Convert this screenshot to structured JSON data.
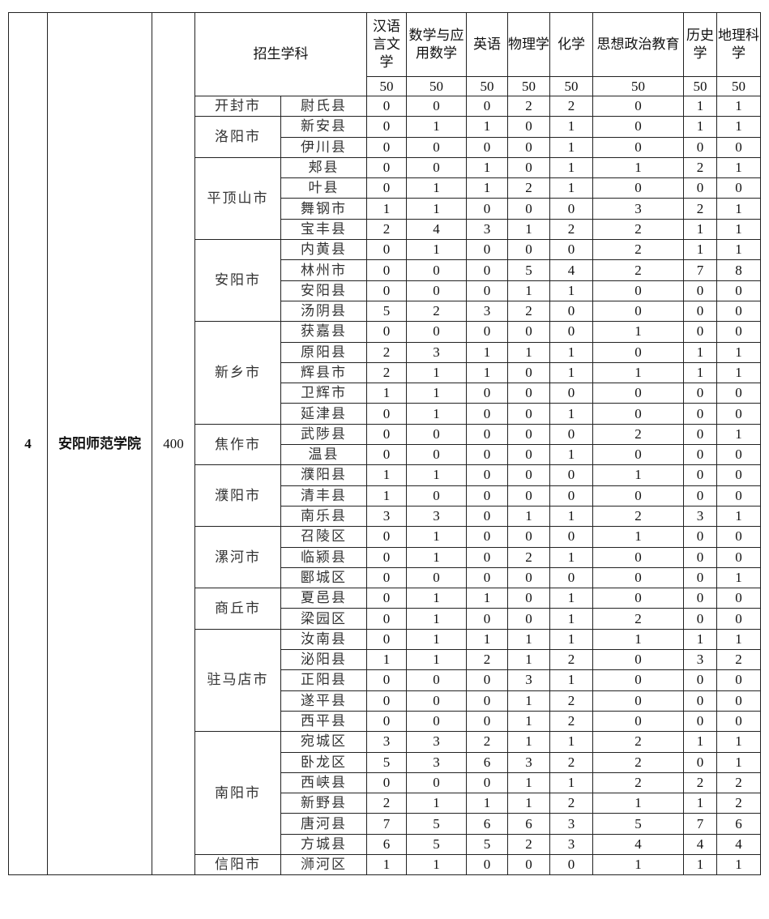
{
  "institution": {
    "no": "4",
    "name": "安阳师范学院",
    "total": "400"
  },
  "header": {
    "group_label": "招生学科",
    "subjects": [
      {
        "name": "汉语言文学",
        "quota": "50"
      },
      {
        "name": "数学与应用数学",
        "quota": "50"
      },
      {
        "name": "英语",
        "quota": "50"
      },
      {
        "name": "物理学",
        "quota": "50"
      },
      {
        "name": "化学",
        "quota": "50"
      },
      {
        "name": "思想政治教育",
        "quota": "50"
      },
      {
        "name": "历史学",
        "quota": "50"
      },
      {
        "name": "地理科学",
        "quota": "50"
      }
    ]
  },
  "cities": [
    {
      "city": "开封市",
      "counties": [
        {
          "name": "尉氏县",
          "values": [
            "0",
            "0",
            "0",
            "2",
            "2",
            "0",
            "1",
            "1"
          ]
        }
      ]
    },
    {
      "city": "洛阳市",
      "counties": [
        {
          "name": "新安县",
          "values": [
            "0",
            "1",
            "1",
            "0",
            "1",
            "0",
            "1",
            "1"
          ]
        },
        {
          "name": "伊川县",
          "values": [
            "0",
            "0",
            "0",
            "0",
            "1",
            "0",
            "0",
            "0"
          ]
        }
      ]
    },
    {
      "city": "平顶山市",
      "counties": [
        {
          "name": "郏县",
          "values": [
            "0",
            "0",
            "1",
            "0",
            "1",
            "1",
            "2",
            "1"
          ]
        },
        {
          "name": "叶县",
          "values": [
            "0",
            "1",
            "1",
            "2",
            "1",
            "0",
            "0",
            "0"
          ]
        },
        {
          "name": "舞钢市",
          "values": [
            "1",
            "1",
            "0",
            "0",
            "0",
            "3",
            "2",
            "1"
          ]
        },
        {
          "name": "宝丰县",
          "values": [
            "2",
            "4",
            "3",
            "1",
            "2",
            "2",
            "1",
            "1"
          ]
        }
      ]
    },
    {
      "city": "安阳市",
      "counties": [
        {
          "name": "内黄县",
          "values": [
            "0",
            "1",
            "0",
            "0",
            "0",
            "2",
            "1",
            "1"
          ]
        },
        {
          "name": "林州市",
          "values": [
            "0",
            "0",
            "0",
            "5",
            "4",
            "2",
            "7",
            "8"
          ]
        },
        {
          "name": "安阳县",
          "values": [
            "0",
            "0",
            "0",
            "1",
            "1",
            "0",
            "0",
            "0"
          ]
        },
        {
          "name": "汤阴县",
          "values": [
            "5",
            "2",
            "3",
            "2",
            "0",
            "0",
            "0",
            "0"
          ]
        }
      ]
    },
    {
      "city": "新乡市",
      "counties": [
        {
          "name": "获嘉县",
          "values": [
            "0",
            "0",
            "0",
            "0",
            "0",
            "1",
            "0",
            "0"
          ]
        },
        {
          "name": "原阳县",
          "values": [
            "2",
            "3",
            "1",
            "1",
            "1",
            "0",
            "1",
            "1"
          ]
        },
        {
          "name": "辉县市",
          "values": [
            "2",
            "1",
            "1",
            "0",
            "1",
            "1",
            "1",
            "1"
          ]
        },
        {
          "name": "卫辉市",
          "values": [
            "1",
            "1",
            "0",
            "0",
            "0",
            "0",
            "0",
            "0"
          ]
        },
        {
          "name": "延津县",
          "values": [
            "0",
            "1",
            "0",
            "0",
            "1",
            "0",
            "0",
            "0"
          ]
        }
      ]
    },
    {
      "city": "焦作市",
      "counties": [
        {
          "name": "武陟县",
          "values": [
            "0",
            "0",
            "0",
            "0",
            "0",
            "2",
            "0",
            "1"
          ]
        },
        {
          "name": "温县",
          "values": [
            "0",
            "0",
            "0",
            "0",
            "1",
            "0",
            "0",
            "0"
          ]
        }
      ]
    },
    {
      "city": "濮阳市",
      "counties": [
        {
          "name": "濮阳县",
          "values": [
            "1",
            "1",
            "0",
            "0",
            "0",
            "1",
            "0",
            "0"
          ]
        },
        {
          "name": "清丰县",
          "values": [
            "1",
            "0",
            "0",
            "0",
            "0",
            "0",
            "0",
            "0"
          ]
        },
        {
          "name": "南乐县",
          "values": [
            "3",
            "3",
            "0",
            "1",
            "1",
            "2",
            "3",
            "1"
          ]
        }
      ]
    },
    {
      "city": "漯河市",
      "counties": [
        {
          "name": "召陵区",
          "values": [
            "0",
            "1",
            "0",
            "0",
            "0",
            "1",
            "0",
            "0"
          ]
        },
        {
          "name": "临颍县",
          "values": [
            "0",
            "1",
            "0",
            "2",
            "1",
            "0",
            "0",
            "0"
          ]
        },
        {
          "name": "郾城区",
          "values": [
            "0",
            "0",
            "0",
            "0",
            "0",
            "0",
            "0",
            "1"
          ]
        }
      ]
    },
    {
      "city": "商丘市",
      "counties": [
        {
          "name": "夏邑县",
          "values": [
            "0",
            "1",
            "1",
            "0",
            "1",
            "0",
            "0",
            "0"
          ]
        },
        {
          "name": "梁园区",
          "values": [
            "0",
            "1",
            "0",
            "0",
            "1",
            "2",
            "0",
            "0"
          ]
        }
      ]
    },
    {
      "city": "驻马店市",
      "counties": [
        {
          "name": "汝南县",
          "values": [
            "0",
            "1",
            "1",
            "1",
            "1",
            "1",
            "1",
            "1"
          ]
        },
        {
          "name": "泌阳县",
          "values": [
            "1",
            "1",
            "2",
            "1",
            "2",
            "0",
            "3",
            "2"
          ]
        },
        {
          "name": "正阳县",
          "values": [
            "0",
            "0",
            "0",
            "3",
            "1",
            "0",
            "0",
            "0"
          ]
        },
        {
          "name": "遂平县",
          "values": [
            "0",
            "0",
            "0",
            "1",
            "2",
            "0",
            "0",
            "0"
          ]
        },
        {
          "name": "西平县",
          "values": [
            "0",
            "0",
            "0",
            "1",
            "2",
            "0",
            "0",
            "0"
          ]
        }
      ]
    },
    {
      "city": "南阳市",
      "counties": [
        {
          "name": "宛城区",
          "values": [
            "3",
            "3",
            "2",
            "1",
            "1",
            "2",
            "1",
            "1"
          ]
        },
        {
          "name": "卧龙区",
          "values": [
            "5",
            "3",
            "6",
            "3",
            "2",
            "2",
            "0",
            "1"
          ]
        },
        {
          "name": "西峡县",
          "values": [
            "0",
            "0",
            "0",
            "1",
            "1",
            "2",
            "2",
            "2"
          ]
        },
        {
          "name": "新野县",
          "values": [
            "2",
            "1",
            "1",
            "1",
            "2",
            "1",
            "1",
            "2"
          ]
        },
        {
          "name": "唐河县",
          "values": [
            "7",
            "5",
            "6",
            "6",
            "3",
            "5",
            "7",
            "6"
          ]
        },
        {
          "name": "方城县",
          "values": [
            "6",
            "5",
            "5",
            "2",
            "3",
            "4",
            "4",
            "4"
          ]
        }
      ]
    },
    {
      "city": "信阳市",
      "counties": [
        {
          "name": "浉河区",
          "values": [
            "1",
            "1",
            "0",
            "0",
            "0",
            "1",
            "1",
            "1"
          ]
        }
      ]
    }
  ]
}
